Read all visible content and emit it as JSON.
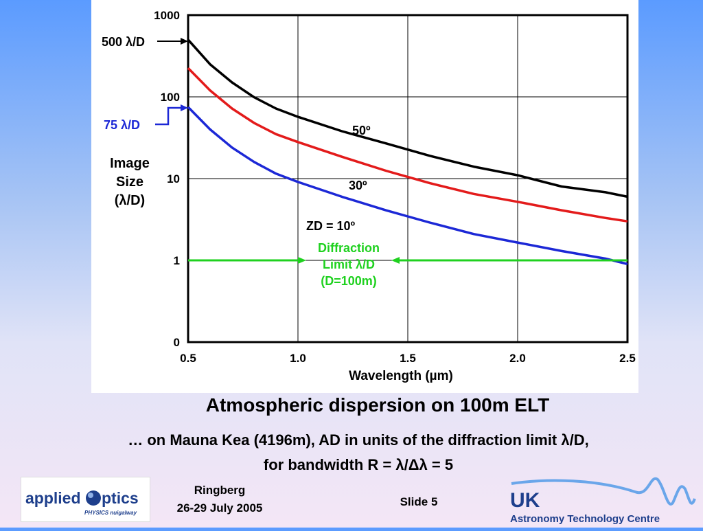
{
  "chart_data": {
    "type": "line",
    "title": "Atmospheric dispersion on 100m ELT",
    "xlabel": "Wavelength (µm)",
    "ylabel": "Image Size (λ/D)",
    "ylabel_lines": [
      "Image",
      "Size",
      "(λ/D)"
    ],
    "xlim": [
      0.5,
      2.5
    ],
    "y_tick_labels": [
      "0",
      "1",
      "10",
      "100",
      "1000"
    ],
    "x_tick_labels": [
      "0.5",
      "1.0",
      "1.5",
      "2.0",
      "2.5"
    ],
    "x_ticks": [
      0.5,
      1.0,
      1.5,
      2.0,
      2.5
    ],
    "y_ticks": [
      0.1,
      1,
      10,
      100,
      1000
    ],
    "ylim": [
      0.1,
      1000
    ],
    "yscale": "log",
    "grid": true,
    "x": [
      0.5,
      0.6,
      0.7,
      0.8,
      0.9,
      1.0,
      1.2,
      1.4,
      1.6,
      1.8,
      2.0,
      2.2,
      2.4,
      2.5
    ],
    "series": [
      {
        "name": "50º",
        "color": "#000000",
        "values": [
          500,
          250,
          150,
          99,
          72,
          57,
          38,
          27,
          19,
          14,
          11,
          8,
          6.8,
          6.0
        ]
      },
      {
        "name": "30º",
        "color": "#e31b1b",
        "values": [
          225,
          120,
          72,
          48,
          35,
          28,
          18.5,
          12.5,
          8.8,
          6.5,
          5.2,
          4.1,
          3.3,
          3.0
        ]
      },
      {
        "name": "ZD = 10º",
        "color": "#1c28d6",
        "values": [
          75,
          40,
          24,
          16,
          11.5,
          9.1,
          6.0,
          4.1,
          2.9,
          2.1,
          1.65,
          1.3,
          1.05,
          0.9
        ]
      },
      {
        "name": "Diffraction Limit λ/D (D=100m)",
        "color": "#1fd11f",
        "values": [
          1,
          1,
          1,
          1,
          1,
          1,
          1,
          1,
          1,
          1,
          1,
          1,
          1,
          1
        ]
      }
    ],
    "annotations": {
      "top_label": "500 λ/D",
      "mid_label": "75 λ/D",
      "curve_50": "50º",
      "curve_30": "30º",
      "curve_10": "ZD = 10º",
      "diffraction_lines": [
        "Diffraction",
        "Limit λ/D",
        "(D=100m)"
      ]
    }
  },
  "slide": {
    "title": "Atmospheric dispersion on 100m ELT",
    "subtitle_line1": "… on Mauna Kea (4196m), AD in units of the diffraction limit λ/D,",
    "subtitle_line2": "for bandwidth R = λ/Δλ = 5"
  },
  "footer": {
    "venue": "Ringberg",
    "dates": "26-29 July 2005",
    "slide_number": "Slide 5",
    "logo_applied_main": "applied",
    "logo_applied_optics": "ptics",
    "logo_applied_sub": "PHYSICS nuigalway",
    "logo_uk": "UK",
    "logo_uk_sub": "Astronomy Technology Centre"
  },
  "colors": {
    "axis": "#000000",
    "grid": "#000000",
    "blue_accent": "#1c28d6",
    "green_accent": "#1fd11f",
    "logo_blue": "#1e3f8c"
  }
}
